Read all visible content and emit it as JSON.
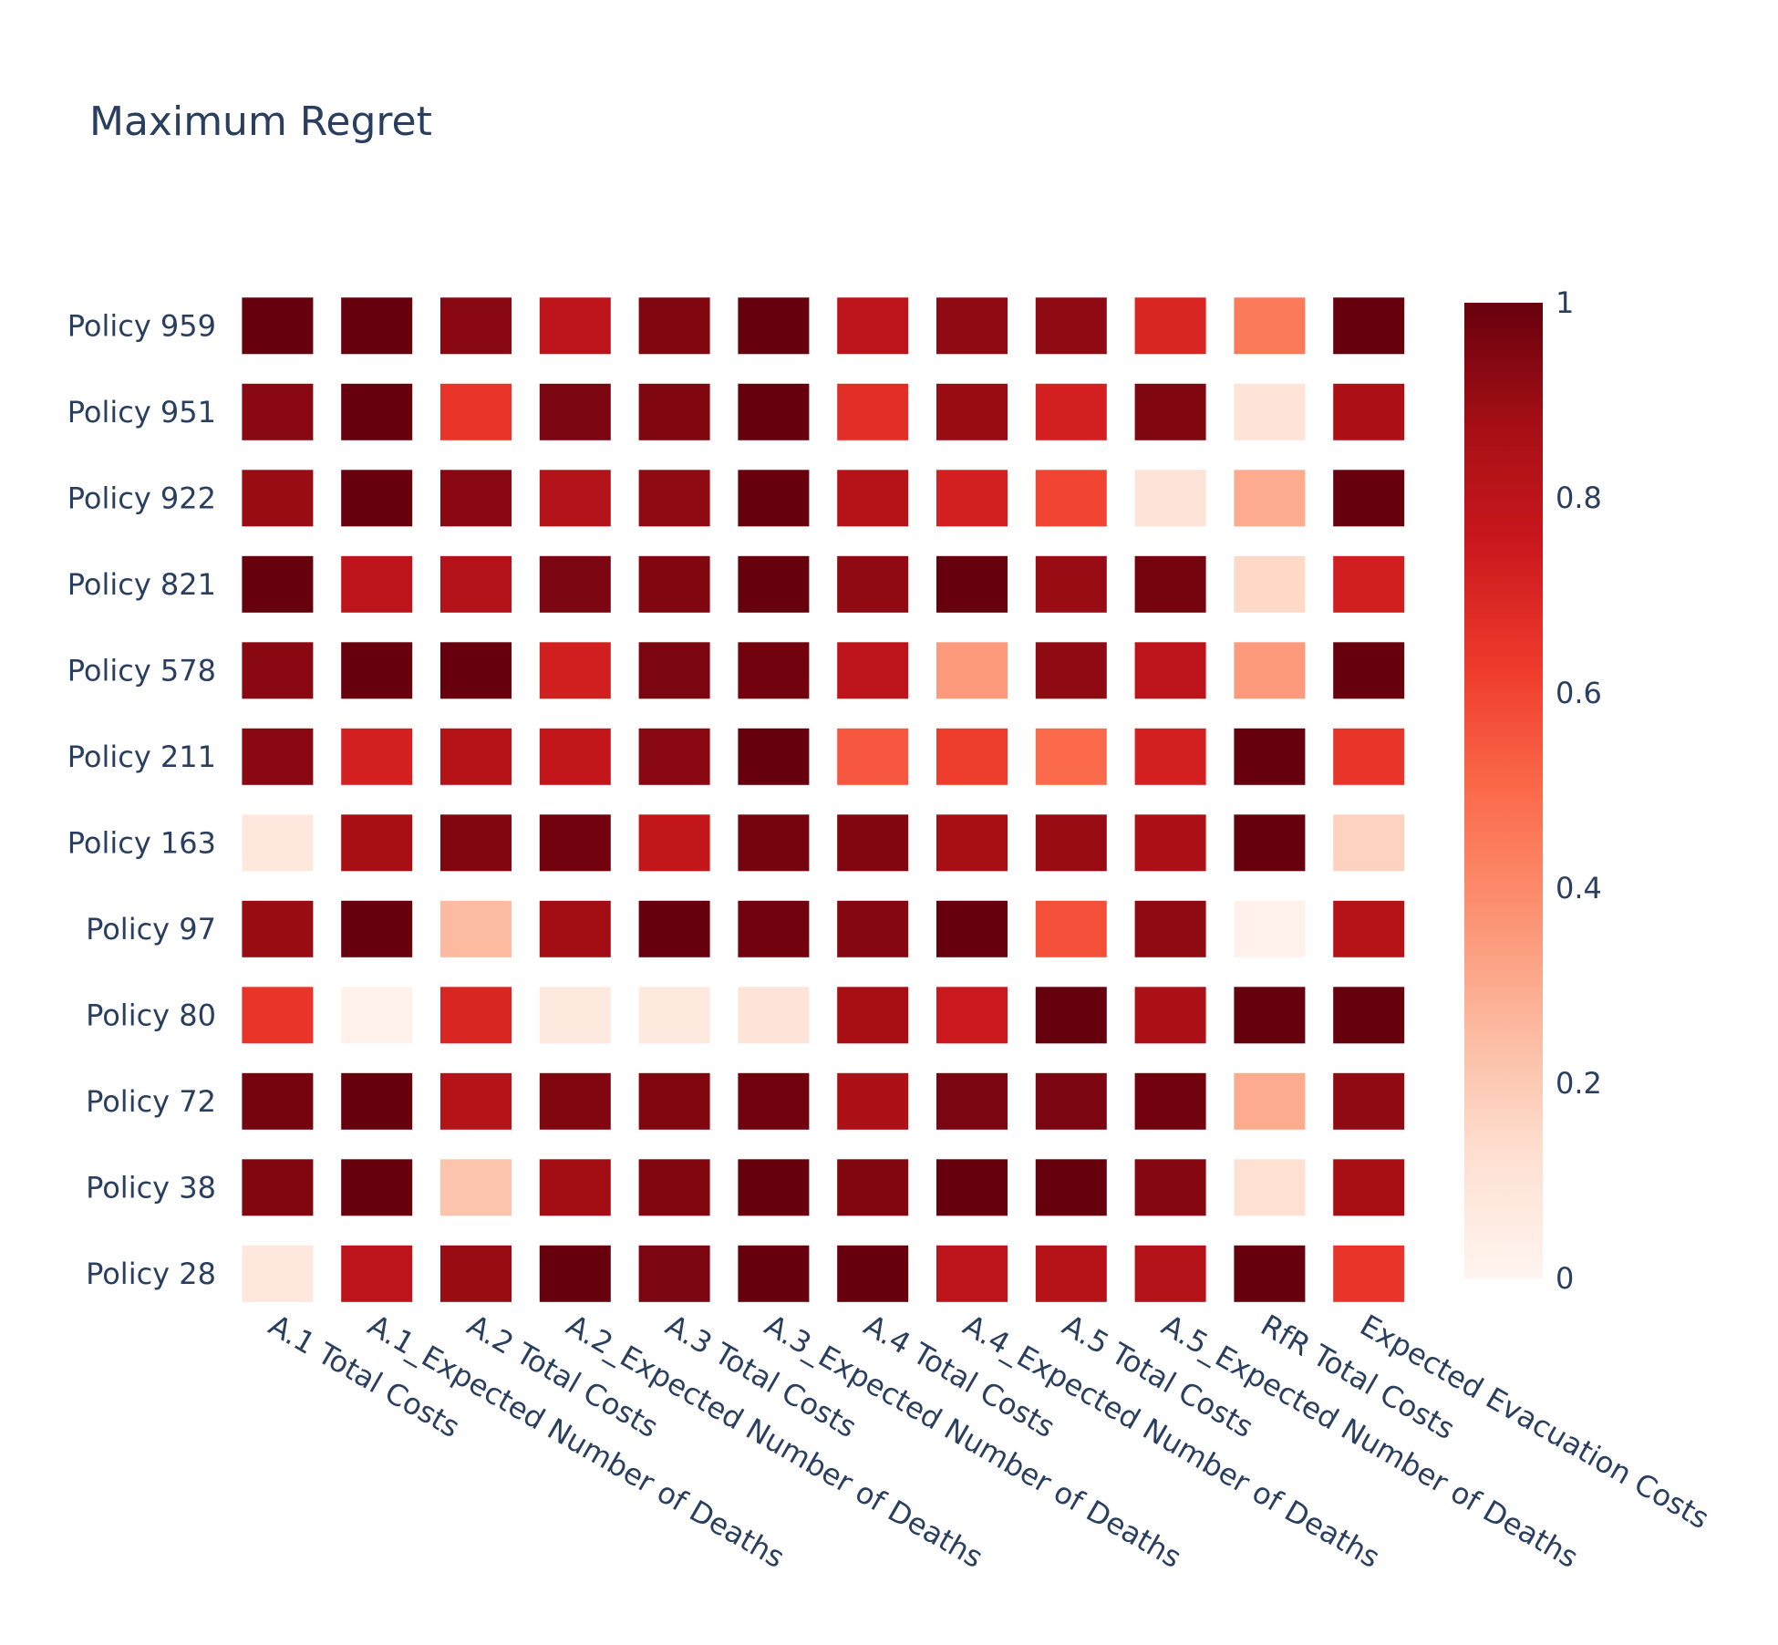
{
  "chart_data": {
    "type": "heatmap",
    "title": "Maximum Regret",
    "xlabel": "",
    "ylabel": "",
    "x_categories": [
      "A.1 Total Costs",
      "A.1_Expected Number of Deaths",
      "A.2 Total Costs",
      "A.2_Expected Number of Deaths",
      "A.3 Total Costs",
      "A.3_Expected Number of Deaths",
      "A.4 Total Costs",
      "A.4_Expected Number of Deaths",
      "A.5 Total Costs",
      "A.5_Expected Number of Deaths",
      "RfR Total Costs",
      "Expected Evacuation Costs"
    ],
    "y_categories": [
      "Policy 959",
      "Policy 951",
      "Policy 922",
      "Policy 821",
      "Policy 578",
      "Policy 211",
      "Policy 163",
      "Policy 97",
      "Policy 80",
      "Policy 72",
      "Policy 38",
      "Policy 28"
    ],
    "values": [
      [
        1.0,
        1.0,
        0.93,
        0.8,
        0.95,
        1.0,
        0.8,
        0.92,
        0.92,
        0.7,
        0.45,
        1.0
      ],
      [
        0.93,
        1.0,
        0.65,
        0.96,
        0.95,
        1.0,
        0.67,
        0.9,
        0.72,
        0.95,
        0.1,
        0.85
      ],
      [
        0.9,
        1.0,
        0.93,
        0.83,
        0.92,
        1.0,
        0.82,
        0.72,
        0.6,
        0.1,
        0.3,
        1.0
      ],
      [
        1.0,
        0.8,
        0.83,
        0.96,
        0.95,
        1.0,
        0.92,
        1.0,
        0.9,
        0.97,
        0.15,
        0.73
      ],
      [
        0.93,
        1.0,
        1.0,
        0.73,
        0.96,
        0.98,
        0.8,
        0.35,
        0.92,
        0.8,
        0.35,
        1.0
      ],
      [
        0.93,
        0.72,
        0.82,
        0.78,
        0.93,
        1.0,
        0.55,
        0.62,
        0.5,
        0.72,
        1.0,
        0.65
      ],
      [
        0.08,
        0.87,
        0.95,
        0.98,
        0.78,
        0.97,
        0.95,
        0.87,
        0.9,
        0.85,
        1.0,
        0.17
      ],
      [
        0.9,
        1.0,
        0.25,
        0.88,
        1.0,
        0.98,
        0.94,
        1.0,
        0.57,
        0.92,
        0.02,
        0.82
      ],
      [
        0.65,
        0.02,
        0.7,
        0.07,
        0.07,
        0.1,
        0.87,
        0.75,
        1.0,
        0.85,
        1.0,
        1.0
      ],
      [
        0.97,
        1.0,
        0.82,
        0.95,
        0.95,
        0.98,
        0.85,
        0.96,
        0.96,
        0.98,
        0.3,
        0.92
      ],
      [
        0.95,
        1.0,
        0.22,
        0.88,
        0.95,
        1.0,
        0.95,
        1.0,
        1.0,
        0.94,
        0.12,
        0.87
      ],
      [
        0.08,
        0.8,
        0.9,
        1.0,
        0.96,
        1.0,
        1.0,
        0.8,
        0.82,
        0.83,
        1.0,
        0.65
      ]
    ],
    "zmin": 0,
    "zmax": 1,
    "colorscale": "Reds",
    "colorbar_ticks": [
      "0",
      "0.2",
      "0.4",
      "0.6",
      "0.8",
      "1"
    ],
    "colors": {
      "scale": [
        "#fff5f0",
        "#fee0d2",
        "#fcbba1",
        "#fc9272",
        "#fb6a4a",
        "#ef3b2c",
        "#cb181d",
        "#a50f15",
        "#67000d"
      ],
      "text": "#2a3f5f",
      "background": "#ffffff"
    }
  }
}
